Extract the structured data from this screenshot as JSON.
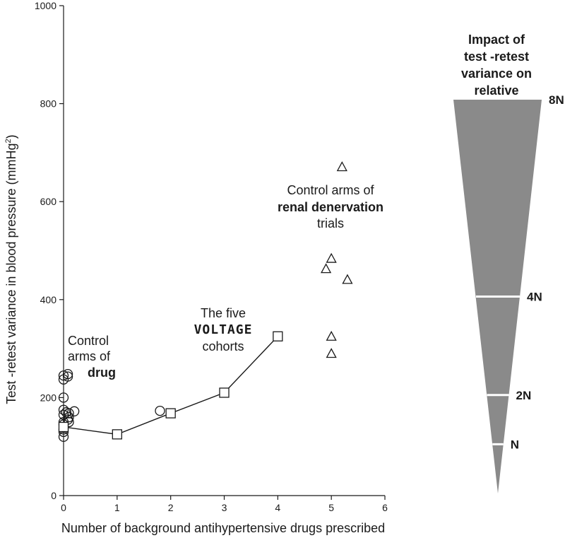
{
  "chart_data": {
    "type": "scatter",
    "title": "",
    "xlabel": "Number of background antihypertensive drugs prescribed",
    "ylabel_main": "Test -retest variance in blood pressure (mmHg",
    "ylabel_sup": "2",
    "ylabel_close": ")",
    "xlim": [
      0,
      6
    ],
    "ylim": [
      0,
      1000
    ],
    "xticks": [
      0,
      1,
      2,
      3,
      4,
      5,
      6
    ],
    "yticks": [
      0,
      200,
      400,
      600,
      800,
      1000
    ],
    "grid": false,
    "series": [
      {
        "marker": "circle",
        "points": [
          [
            0,
            245
          ],
          [
            0.08,
            248
          ],
          [
            0,
            237
          ],
          [
            0.08,
            243
          ],
          [
            0,
            200
          ],
          [
            0,
            175
          ],
          [
            0.05,
            170
          ],
          [
            0.2,
            172
          ],
          [
            0.1,
            168
          ],
          [
            0,
            165
          ],
          [
            0.1,
            160
          ],
          [
            0.08,
            155
          ],
          [
            0,
            150
          ],
          [
            0.1,
            150
          ],
          [
            0,
            145
          ],
          [
            0,
            135
          ],
          [
            0,
            130
          ],
          [
            0,
            120
          ],
          [
            1.8,
            173
          ]
        ]
      },
      {
        "marker": "square",
        "connected": true,
        "points": [
          [
            0,
            140
          ],
          [
            1,
            125
          ],
          [
            2,
            168
          ],
          [
            3,
            210
          ],
          [
            4,
            325
          ]
        ]
      },
      {
        "marker": "triangle",
        "points": [
          [
            5.2,
            670
          ],
          [
            5,
            483
          ],
          [
            4.9,
            462
          ],
          [
            5.3,
            440
          ],
          [
            5,
            324
          ],
          [
            5,
            289
          ]
        ]
      }
    ],
    "annotations": {
      "drug_line1": "Control",
      "drug_line2": "arms of",
      "drug_line3": "drug",
      "voltage_line1": "The five",
      "voltage_line2": "VOLTAGE",
      "voltage_line3": "cohorts",
      "renal_line1": "Control arms of",
      "renal_line2": "renal denervation",
      "renal_line3": "trials"
    },
    "wedge": {
      "title_lines": [
        "Impact of",
        "test -retest",
        "variance on",
        "relative"
      ],
      "color": "#8a8a8a",
      "levels": [
        {
          "label": "8N",
          "value": 8
        },
        {
          "label": "4N",
          "value": 4
        },
        {
          "label": "2N",
          "value": 2
        },
        {
          "label": "N",
          "value": 1
        }
      ]
    }
  }
}
